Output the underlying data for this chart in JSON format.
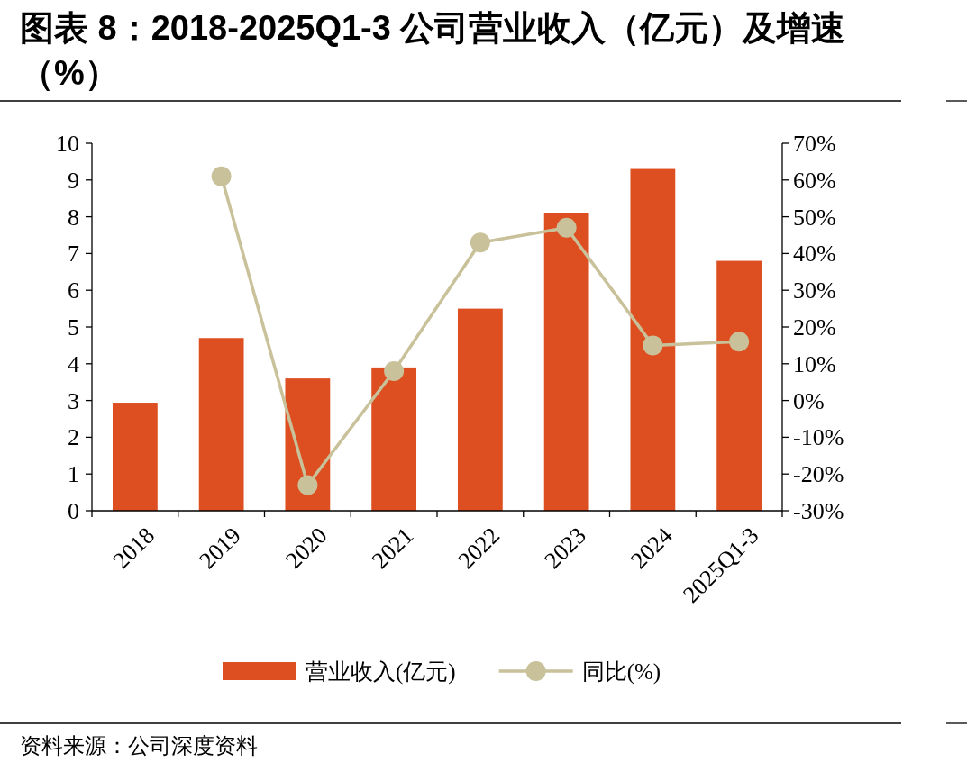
{
  "chart_data": {
    "type": "bar",
    "title": "图表 8：2018-2025Q1-3 公司营业收入（亿元）及增速（%）",
    "categories": [
      "2018",
      "2019",
      "2020",
      "2021",
      "2022",
      "2023",
      "2024",
      "2025Q1-3"
    ],
    "series": [
      {
        "name": "营业收入(亿元)",
        "color": "#dd4e20",
        "values": [
          2.94,
          4.7,
          3.6,
          3.9,
          5.5,
          8.1,
          9.3,
          6.8
        ]
      },
      {
        "name": "同比(%)",
        "type": "line",
        "axis": "y2",
        "color": "#c9c19a",
        "values": [
          null,
          61,
          -23,
          8,
          43,
          47,
          15,
          16
        ]
      }
    ],
    "ylim": [
      0,
      10
    ],
    "yticks": [
      0,
      1,
      2,
      3,
      4,
      5,
      6,
      7,
      8,
      9,
      10
    ],
    "y2lim": [
      -30,
      70
    ],
    "y2ticks": [
      {
        "value": -30,
        "label": "-30%"
      },
      {
        "value": -20,
        "label": "-20%"
      },
      {
        "value": -10,
        "label": "-10%"
      },
      {
        "value": 0,
        "label": "0%"
      },
      {
        "value": 10,
        "label": "10%"
      },
      {
        "value": 20,
        "label": "20%"
      },
      {
        "value": 30,
        "label": "30%"
      },
      {
        "value": 40,
        "label": "40%"
      },
      {
        "value": 50,
        "label": "50%"
      },
      {
        "value": 60,
        "label": "60%"
      },
      {
        "value": 70,
        "label": "70%"
      }
    ],
    "marker": "circle",
    "grid": false,
    "legend": "bottom",
    "annotations": [
      "资料来源：公司深度资料"
    ]
  }
}
